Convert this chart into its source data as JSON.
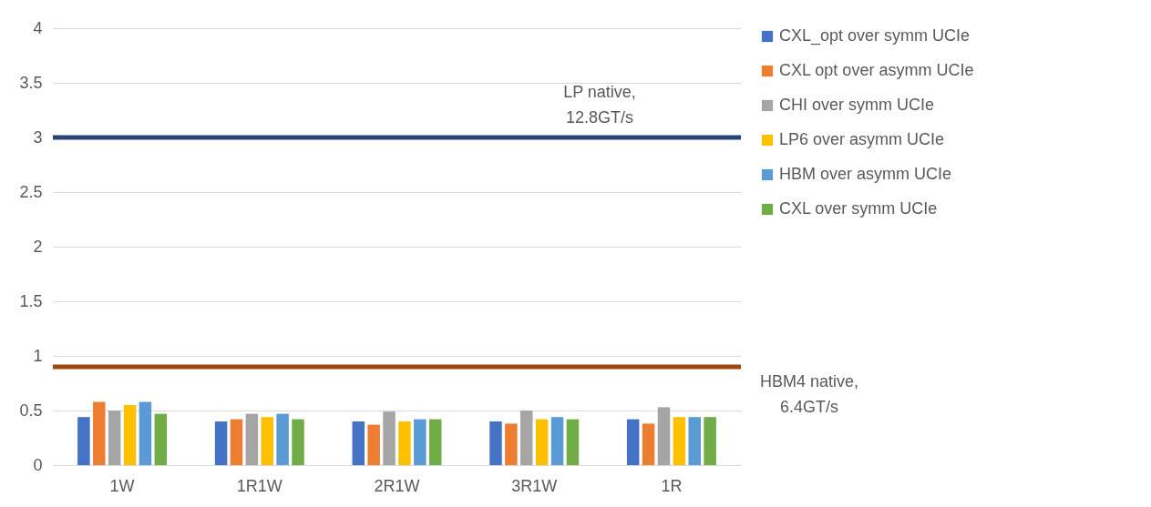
{
  "chart_data": {
    "type": "bar",
    "categories": [
      "1W",
      "1R1W",
      "2R1W",
      "3R1W",
      "1R"
    ],
    "series": [
      {
        "name": "CXL_opt over symm UCIe",
        "color": "#4472c4",
        "values": [
          0.44,
          0.4,
          0.4,
          0.4,
          0.42
        ]
      },
      {
        "name": "CXL opt over asymm UCIe",
        "color": "#ed7d31",
        "values": [
          0.58,
          0.42,
          0.37,
          0.38,
          0.38
        ]
      },
      {
        "name": "CHI over symm UCIe",
        "color": "#a5a5a5",
        "values": [
          0.5,
          0.47,
          0.49,
          0.5,
          0.53
        ]
      },
      {
        "name": "LP6 over asymm UCIe",
        "color": "#ffc000",
        "values": [
          0.55,
          0.44,
          0.4,
          0.42,
          0.44
        ]
      },
      {
        "name": "HBM over asymm UCIe",
        "color": "#5b9bd5",
        "values": [
          0.58,
          0.47,
          0.42,
          0.44,
          0.44
        ]
      },
      {
        "name": "CXL over symm UCIe",
        "color": "#70ad47",
        "values": [
          0.47,
          0.42,
          0.42,
          0.42,
          0.44
        ]
      }
    ],
    "ylim": [
      0,
      4
    ],
    "yticks": [
      0,
      0.5,
      1,
      1.5,
      2,
      2.5,
      3,
      3.5,
      4
    ],
    "ref_lines": [
      {
        "axis": "y",
        "value": 3,
        "label": "LP native, 12.8GT/s",
        "color": "#264478"
      },
      {
        "axis": "y",
        "value": 0.9,
        "label": "HBM4 native, 6.4GT/s",
        "color": "#9e480e"
      }
    ],
    "grid": "y",
    "legend": "right"
  }
}
